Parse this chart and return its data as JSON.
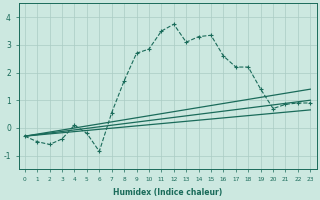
{
  "xlabel": "Humidex (Indice chaleur)",
  "ylabel": "",
  "bg_color": "#cce8e0",
  "grid_color": "#aaccC4",
  "line_color": "#1a6b5a",
  "xlim": [
    -0.5,
    23.5
  ],
  "ylim": [
    -1.5,
    4.5
  ],
  "xtick_labels": [
    "0",
    "1",
    "2",
    "3",
    "4",
    "5",
    "6",
    "7",
    "8",
    "9",
    "10",
    "11",
    "12",
    "13",
    "14",
    "15",
    "16",
    "17",
    "18",
    "19",
    "20",
    "21",
    "22",
    "23"
  ],
  "ytick_values": [
    -1,
    0,
    1,
    2,
    3,
    4
  ],
  "series": [
    {
      "x": [
        0,
        1,
        2,
        3,
        4,
        5,
        6,
        7,
        8,
        9,
        10,
        11,
        12,
        13,
        14,
        15,
        16,
        17,
        18,
        19,
        20,
        21,
        22,
        23
      ],
      "y": [
        -0.3,
        -0.5,
        -0.6,
        -0.4,
        0.1,
        -0.2,
        -0.85,
        0.55,
        1.7,
        2.7,
        2.85,
        3.5,
        3.75,
        3.1,
        3.3,
        3.35,
        2.6,
        2.2,
        2.2,
        1.4,
        0.7,
        0.85,
        0.9,
        0.9
      ],
      "linestyle": "--",
      "has_markers": true
    },
    {
      "x": [
        0,
        23
      ],
      "y": [
        -0.3,
        1.4
      ],
      "linestyle": "-",
      "has_markers": false
    },
    {
      "x": [
        0,
        23
      ],
      "y": [
        -0.3,
        1.0
      ],
      "linestyle": "-",
      "has_markers": false
    },
    {
      "x": [
        0,
        23
      ],
      "y": [
        -0.3,
        0.65
      ],
      "linestyle": "-",
      "has_markers": false
    }
  ]
}
